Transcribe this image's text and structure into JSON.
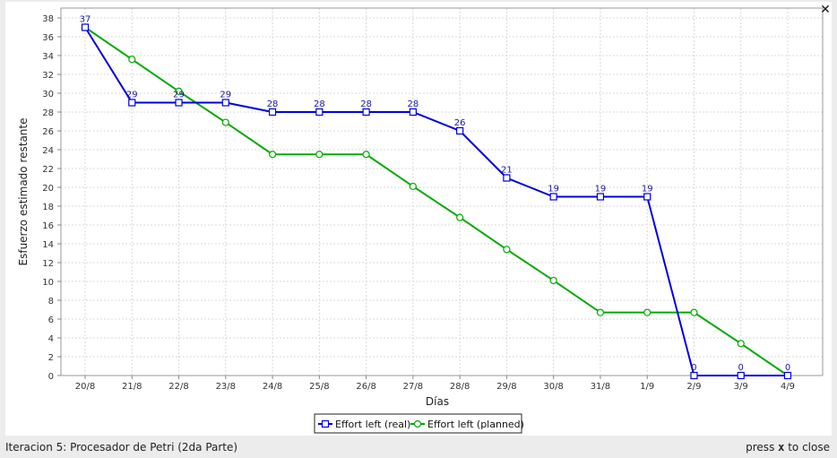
{
  "window": {
    "status_left": "Iteracion 5: Procesador de Petri (2da Parte)",
    "status_right_prefix": "press",
    "status_right_key": "x",
    "status_right_suffix": "to close",
    "close_glyph": "✕"
  },
  "chart_data": {
    "type": "line",
    "title": "",
    "xlabel": "Días",
    "ylabel": "Esfuerzo estimado restante",
    "categories": [
      "20/8",
      "21/8",
      "22/8",
      "23/8",
      "24/8",
      "25/8",
      "26/8",
      "27/8",
      "28/8",
      "29/8",
      "30/8",
      "31/8",
      "1/9",
      "2/9",
      "3/9",
      "4/9"
    ],
    "yticks": [
      0,
      2,
      4,
      6,
      8,
      10,
      12,
      14,
      16,
      18,
      20,
      22,
      24,
      26,
      28,
      30,
      32,
      34,
      36,
      38
    ],
    "ylim": [
      0,
      38
    ],
    "grid": true,
    "legend_position": "bottom-center",
    "series": [
      {
        "name": "Effort left (real)",
        "color": "#0000dd",
        "marker": "square",
        "values": [
          37,
          29,
          29,
          29,
          28,
          28,
          28,
          28,
          26,
          21,
          19,
          19,
          19,
          0,
          0,
          0
        ],
        "labels": [
          "37",
          "29",
          "29",
          "29",
          "28",
          "28",
          "28",
          "28",
          "26",
          "21",
          "19",
          "19",
          "19",
          "0",
          "0",
          "0"
        ]
      },
      {
        "name": "Effort left (planned)",
        "color": "#00aa00",
        "marker": "circle",
        "values": [
          37,
          33.6,
          30.2,
          26.9,
          23.5,
          23.5,
          23.5,
          20.1,
          16.8,
          13.4,
          10.1,
          6.7,
          6.7,
          6.7,
          3.4,
          0
        ]
      }
    ]
  }
}
